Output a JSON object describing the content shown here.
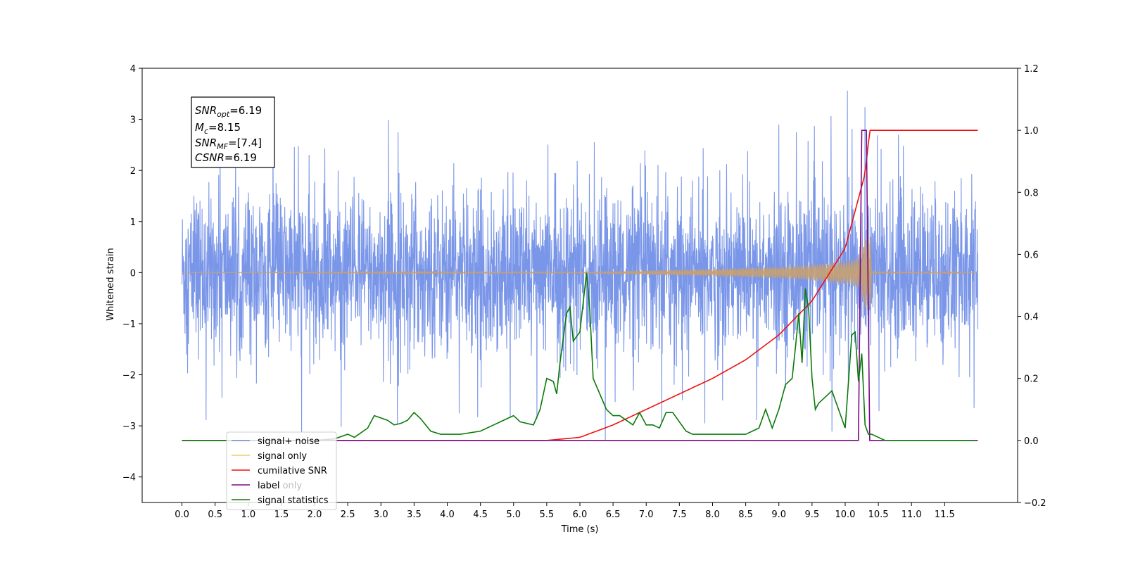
{
  "chart_data": {
    "type": "line",
    "xlabel": "Time (s)",
    "ylabel": "Whitened strain",
    "xlim": [
      -0.6,
      12.6
    ],
    "ylim": [
      -4.5,
      4.0
    ],
    "y2lim": [
      -0.2,
      1.2
    ],
    "x_ticks": [
      "0.0",
      "0.5",
      "1.0",
      "1.5",
      "2.0",
      "2.5",
      "3.0",
      "3.5",
      "4.0",
      "4.5",
      "5.0",
      "5.5",
      "6.0",
      "6.5",
      "7.0",
      "7.5",
      "8.0",
      "8.5",
      "9.0",
      "9.5",
      "10.0",
      "10.5",
      "11.0",
      "11.5"
    ],
    "y_ticks": [
      "4",
      "3",
      "2",
      "1",
      "0",
      "−1",
      "−2",
      "−3",
      "−4"
    ],
    "y2_ticks": [
      "1.2",
      "1.0",
      "0.8",
      "0.6",
      "0.4",
      "0.2",
      "0.0",
      "−0.2"
    ],
    "colors": {
      "signal_noise": "#6b8be6",
      "signal_only": "#c8a070",
      "cumulative_snr": "#ee1111",
      "label": "#7a0a82",
      "signal_statistics": "#0a7a0a"
    },
    "annotation": {
      "snr_opt": "6.19",
      "mc": "8.15",
      "snr_mf": "[7.4]",
      "csnr": "6.19"
    },
    "legend_position": "lower-left",
    "series": [
      {
        "name": "signal+ noise",
        "x_range": [
          0.0,
          12.0
        ],
        "description_values": "noise band approx ±2, spikes up to 3.6 and down to −4.1"
      },
      {
        "name": "signal only",
        "x": [
          0,
          6.0,
          7.0,
          8.0,
          9.0,
          9.5,
          10.0,
          10.2,
          10.37,
          10.4,
          12.0
        ],
        "envelope": [
          0,
          0.01,
          0.04,
          0.07,
          0.11,
          0.15,
          0.22,
          0.28,
          0.95,
          0.02,
          0
        ]
      },
      {
        "name": "cumilative SNR",
        "x": [
          0,
          5.5,
          6.0,
          6.5,
          7.0,
          7.5,
          8.0,
          8.5,
          9.0,
          9.5,
          10.0,
          10.3,
          10.37,
          10.4,
          12.0
        ],
        "values": [
          0,
          0.0,
          0.01,
          0.05,
          0.1,
          0.15,
          0.2,
          0.26,
          0.34,
          0.45,
          0.62,
          0.86,
          1.0,
          1.0,
          1.0
        ]
      },
      {
        "name": "label",
        "x": [
          0,
          10.2,
          10.25,
          10.32,
          10.37,
          10.4,
          12.0
        ],
        "values": [
          0,
          0,
          1.0,
          1.0,
          0,
          0,
          0
        ]
      },
      {
        "name": "label only",
        "hidden": true
      },
      {
        "name": "signal statistics",
        "x": [
          0,
          1.0,
          2.0,
          2.3,
          2.5,
          2.6,
          2.8,
          2.9,
          3.1,
          3.2,
          3.3,
          3.4,
          3.5,
          3.6,
          3.75,
          3.9,
          4.2,
          4.5,
          4.7,
          4.8,
          4.9,
          5.0,
          5.1,
          5.3,
          5.4,
          5.5,
          5.6,
          5.65,
          5.7,
          5.8,
          5.85,
          5.9,
          6.0,
          6.1,
          6.15,
          6.2,
          6.3,
          6.4,
          6.5,
          6.6,
          6.8,
          6.9,
          7.0,
          7.1,
          7.2,
          7.3,
          7.4,
          7.5,
          7.6,
          7.7,
          7.8,
          8.0,
          8.5,
          8.7,
          8.8,
          8.9,
          9.0,
          9.1,
          9.2,
          9.25,
          9.3,
          9.35,
          9.4,
          9.45,
          9.5,
          9.55,
          9.6,
          9.7,
          9.8,
          9.9,
          10.0,
          10.1,
          10.15,
          10.2,
          10.25,
          10.3,
          10.35,
          10.4,
          10.5,
          10.6,
          10.8,
          11.0,
          11.5,
          11.95
        ],
        "values": [
          0,
          0,
          0,
          0.005,
          0.02,
          0.01,
          0.04,
          0.08,
          0.065,
          0.05,
          0.055,
          0.065,
          0.09,
          0.07,
          0.03,
          0.02,
          0.02,
          0.03,
          0.05,
          0.06,
          0.07,
          0.08,
          0.06,
          0.05,
          0.1,
          0.2,
          0.19,
          0.15,
          0.25,
          0.41,
          0.43,
          0.32,
          0.35,
          0.54,
          0.42,
          0.2,
          0.15,
          0.1,
          0.08,
          0.08,
          0.05,
          0.09,
          0.05,
          0.05,
          0.04,
          0.09,
          0.09,
          0.06,
          0.03,
          0.02,
          0.02,
          0.02,
          0.02,
          0.04,
          0.1,
          0.04,
          0.1,
          0.18,
          0.2,
          0.3,
          0.41,
          0.25,
          0.49,
          0.42,
          0.2,
          0.1,
          0.12,
          0.14,
          0.16,
          0.1,
          0.04,
          0.34,
          0.35,
          0.19,
          0.28,
          0.05,
          0.02,
          0.02,
          0.01,
          0,
          0,
          0,
          0,
          0
        ]
      }
    ]
  }
}
